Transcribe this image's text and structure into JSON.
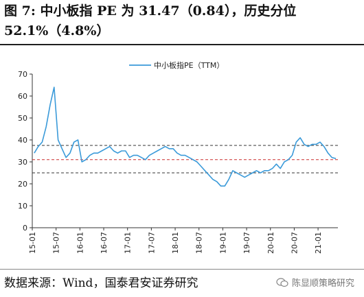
{
  "header": {
    "title": "图 7:  中小板指 PE 为 31.47（0.84），历史分位 52.1%（4.8%）"
  },
  "footer": {
    "source": "数据来源：Wind，国泰君安证券研究",
    "watermark": "陈显顺策略研究"
  },
  "colors": {
    "series": "#3a9ad9",
    "mean_line": "#cc2b2b",
    "band_lines": "#333333"
  },
  "chart_data": {
    "type": "line",
    "series": [
      {
        "name": "中小板指PE（TTM）",
        "x": [
          "2015-01",
          "2015-02",
          "2015-03",
          "2015-04",
          "2015-05",
          "2015-06",
          "2015-07",
          "2015-08",
          "2015-09",
          "2015-10",
          "2015-11",
          "2015-12",
          "2016-01",
          "2016-02",
          "2016-03",
          "2016-04",
          "2016-05",
          "2016-06",
          "2016-07",
          "2016-08",
          "2016-09",
          "2016-10",
          "2016-11",
          "2016-12",
          "2017-01",
          "2017-02",
          "2017-03",
          "2017-04",
          "2017-05",
          "2017-06",
          "2017-07",
          "2017-08",
          "2017-09",
          "2017-10",
          "2017-11",
          "2017-12",
          "2018-01",
          "2018-02",
          "2018-03",
          "2018-04",
          "2018-05",
          "2018-06",
          "2018-07",
          "2018-08",
          "2018-09",
          "2018-10",
          "2018-11",
          "2018-12",
          "2019-01",
          "2019-02",
          "2019-03",
          "2019-04",
          "2019-05",
          "2019-06",
          "2019-07",
          "2019-08",
          "2019-09",
          "2019-10",
          "2019-11",
          "2019-12",
          "2020-01",
          "2020-02",
          "2020-03",
          "2020-04",
          "2020-05",
          "2020-06",
          "2020-07",
          "2020-08",
          "2020-09",
          "2020-10",
          "2020-11",
          "2020-12",
          "2021-01",
          "2021-02",
          "2021-03",
          "2021-04",
          "2021-05"
        ],
        "values": [
          34,
          37,
          39,
          46,
          56,
          64,
          40,
          36,
          32,
          34,
          39,
          40,
          30,
          31,
          33,
          34,
          34,
          35,
          36,
          37,
          35,
          34,
          35,
          35,
          32,
          33,
          33,
          32,
          31,
          33,
          34,
          35,
          36,
          37,
          36,
          36,
          34,
          33,
          33,
          32,
          31,
          30,
          28,
          26,
          24,
          22,
          21,
          19,
          19,
          22,
          26,
          25,
          24,
          23,
          24,
          25,
          26,
          25,
          26,
          26,
          27,
          29,
          27,
          30,
          31,
          33,
          39,
          41,
          38,
          37,
          38,
          38,
          39,
          37,
          34,
          32,
          31.5
        ]
      }
    ],
    "reference_lines": [
      {
        "value": 37.5,
        "style": "dashed"
      },
      {
        "value": 31.0,
        "style": "dashed"
      },
      {
        "value": 25.0,
        "style": "dashed"
      }
    ],
    "x_tick_labels": [
      "15-01",
      "15-07",
      "16-01",
      "16-07",
      "17-01",
      "17-07",
      "18-01",
      "18-07",
      "19-01",
      "19-07",
      "20-01",
      "20-07",
      "21-01"
    ],
    "y_ticks": [
      0,
      10,
      20,
      30,
      40,
      50,
      60,
      70
    ],
    "ylim": [
      0,
      70
    ],
    "xlim": [
      "2015-01",
      "2021-05"
    ],
    "legend_position": "top-center",
    "grid": false
  }
}
